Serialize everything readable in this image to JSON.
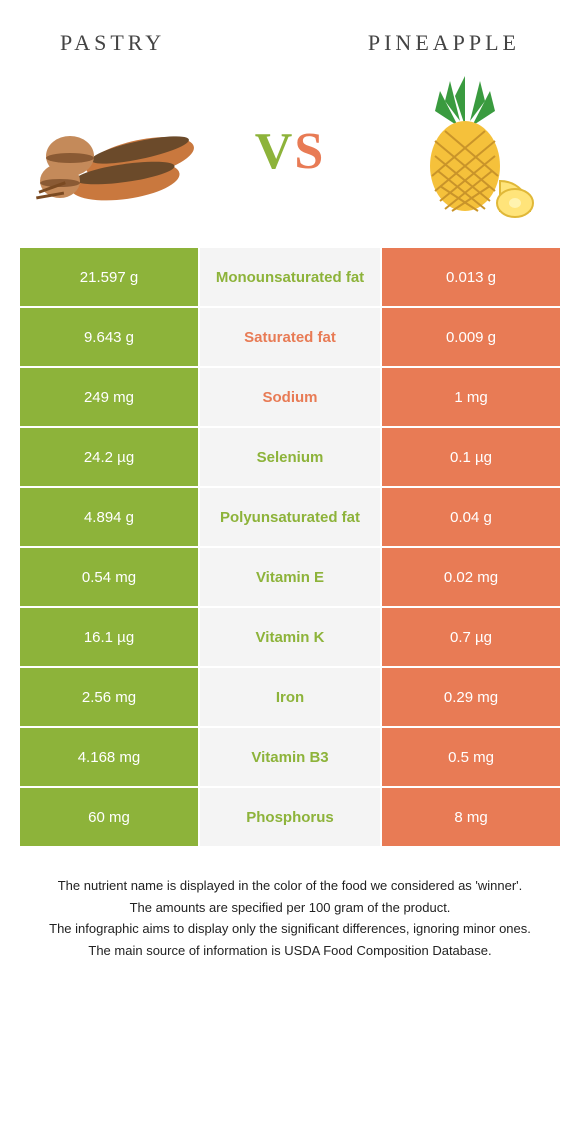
{
  "header": {
    "left_title": "Pastry",
    "right_title": "Pineapple",
    "vs_v": "V",
    "vs_s": "S"
  },
  "colors": {
    "left_bg": "#8db33a",
    "right_bg": "#e87b55",
    "mid_bg": "#f4f4f4",
    "left_text": "#ffffff",
    "right_text": "#ffffff"
  },
  "rows": [
    {
      "left": "21.597 g",
      "label": "Monounsaturated fat",
      "right": "0.013 g",
      "winner": "left"
    },
    {
      "left": "9.643 g",
      "label": "Saturated fat",
      "right": "0.009 g",
      "winner": "right"
    },
    {
      "left": "249 mg",
      "label": "Sodium",
      "right": "1 mg",
      "winner": "right"
    },
    {
      "left": "24.2 µg",
      "label": "Selenium",
      "right": "0.1 µg",
      "winner": "left"
    },
    {
      "left": "4.894 g",
      "label": "Polyunsaturated fat",
      "right": "0.04 g",
      "winner": "left"
    },
    {
      "left": "0.54 mg",
      "label": "Vitamin E",
      "right": "0.02 mg",
      "winner": "left"
    },
    {
      "left": "16.1 µg",
      "label": "Vitamin K",
      "right": "0.7 µg",
      "winner": "left"
    },
    {
      "left": "2.56 mg",
      "label": "Iron",
      "right": "0.29 mg",
      "winner": "left"
    },
    {
      "left": "4.168 mg",
      "label": "Vitamin B3",
      "right": "0.5 mg",
      "winner": "left"
    },
    {
      "left": "60 mg",
      "label": "Phosphorus",
      "right": "8 mg",
      "winner": "left"
    }
  ],
  "footnotes": [
    "The nutrient name is displayed in the color of the food we considered as 'winner'.",
    "The amounts are specified per 100 gram of the product.",
    "The infographic aims to display only the significant differences, ignoring minor ones.",
    "The main source of information is USDA Food Composition Database."
  ]
}
